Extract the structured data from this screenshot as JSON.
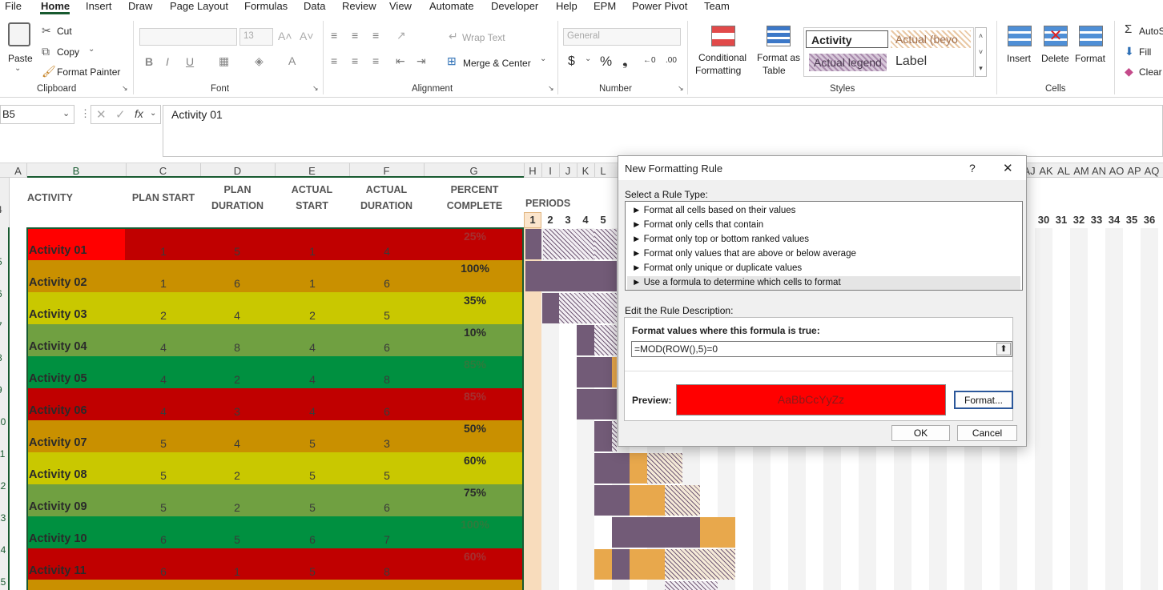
{
  "menu": {
    "items": [
      "File",
      "Home",
      "Insert",
      "Draw",
      "Page Layout",
      "Formulas",
      "Data",
      "Review",
      "View",
      "Automate",
      "Developer",
      "Help",
      "EPM",
      "Power Pivot",
      "Team"
    ],
    "active": "Home"
  },
  "ribbon": {
    "clipboard": {
      "paste": "Paste",
      "cut": "Cut",
      "copy": "Copy",
      "format_painter": "Format Painter",
      "label": "Clipboard"
    },
    "font": {
      "size": "13",
      "label": "Font"
    },
    "alignment": {
      "wrap_text": "Wrap Text",
      "merge_center": "Merge & Center",
      "label": "Alignment"
    },
    "number": {
      "format": "General",
      "label": "Number"
    },
    "styles": {
      "conditional_l1": "Conditional",
      "conditional_l2": "Formatting",
      "format_table_l1": "Format as",
      "format_table_l2": "Table",
      "cells": [
        "Activity",
        "Actual (beyo",
        "Actual legend",
        "Label"
      ],
      "label": "Styles"
    },
    "cells": {
      "insert": "Insert",
      "delete": "Delete",
      "format": "Format",
      "label": "Cells"
    },
    "editing": {
      "autosum": "AutoS",
      "fill": "Fill",
      "clear": "Clear"
    }
  },
  "formula_bar": {
    "name_box": "B5",
    "fx": "fx",
    "content": "Activity 01"
  },
  "grid": {
    "col_headers_left": [
      "A",
      "B",
      "C",
      "D",
      "E",
      "F",
      "G",
      "H",
      "I",
      "J",
      "K",
      "L"
    ],
    "col_headers_right": [
      "AJ",
      "AK",
      "AL",
      "AM",
      "AN",
      "AO",
      "AP",
      "AQ"
    ],
    "headers": {
      "activity": "ACTIVITY",
      "plan_start": "PLAN START",
      "plan_duration_l1": "PLAN",
      "plan_duration_l2": "DURATION",
      "actual_start_l1": "ACTUAL",
      "actual_start_l2": "START",
      "actual_duration_l1": "ACTUAL",
      "actual_duration_l2": "DURATION",
      "percent_l1": "PERCENT",
      "percent_l2": "COMPLETE",
      "periods": "PERIODS"
    },
    "period_numbers_left": [
      "1",
      "2",
      "3",
      "4",
      "5"
    ],
    "period_numbers_right": [
      "30",
      "31",
      "32",
      "33",
      "34",
      "35",
      "36"
    ],
    "row_numbers": [
      "4",
      "5",
      "6",
      "7",
      "8",
      "9",
      "10",
      "11",
      "12",
      "13",
      "14",
      "15"
    ],
    "activities": [
      {
        "name": "Activity 01",
        "plan_start": "1",
        "plan_duration": "5",
        "actual_start": "1",
        "actual_duration": "4",
        "pct": "25%",
        "color": "#c00000",
        "pct_color": "#a52f2f"
      },
      {
        "name": "Activity 02",
        "plan_start": "1",
        "plan_duration": "6",
        "actual_start": "1",
        "actual_duration": "6",
        "pct": "100%",
        "color": "#c99000",
        "pct_color": "#2a2a2a"
      },
      {
        "name": "Activity 03",
        "plan_start": "2",
        "plan_duration": "4",
        "actual_start": "2",
        "actual_duration": "5",
        "pct": "35%",
        "color": "#c9c800",
        "pct_color": "#2a2a2a"
      },
      {
        "name": "Activity 04",
        "plan_start": "4",
        "plan_duration": "8",
        "actual_start": "4",
        "actual_duration": "6",
        "pct": "10%",
        "color": "#70a041",
        "pct_color": "#2a2a2a"
      },
      {
        "name": "Activity 05",
        "plan_start": "4",
        "plan_duration": "2",
        "actual_start": "4",
        "actual_duration": "8",
        "pct": "85%",
        "color": "#009040",
        "pct_color": "#2f7a3c"
      },
      {
        "name": "Activity 06",
        "plan_start": "4",
        "plan_duration": "3",
        "actual_start": "4",
        "actual_duration": "6",
        "pct": "85%",
        "color": "#c00000",
        "pct_color": "#a52f2f"
      },
      {
        "name": "Activity 07",
        "plan_start": "5",
        "plan_duration": "4",
        "actual_start": "5",
        "actual_duration": "3",
        "pct": "50%",
        "color": "#c99000",
        "pct_color": "#2a2a2a"
      },
      {
        "name": "Activity 08",
        "plan_start": "5",
        "plan_duration": "2",
        "actual_start": "5",
        "actual_duration": "5",
        "pct": "60%",
        "color": "#c9c800",
        "pct_color": "#2a2a2a"
      },
      {
        "name": "Activity 09",
        "plan_start": "5",
        "plan_duration": "2",
        "actual_start": "5",
        "actual_duration": "6",
        "pct": "75%",
        "color": "#70a041",
        "pct_color": "#2a2a2a"
      },
      {
        "name": "Activity 10",
        "plan_start": "6",
        "plan_duration": "5",
        "actual_start": "6",
        "actual_duration": "7",
        "pct": "100%",
        "color": "#009040",
        "pct_color": "#2f7a3c"
      },
      {
        "name": "Activity 11",
        "plan_start": "6",
        "plan_duration": "1",
        "actual_start": "5",
        "actual_duration": "8",
        "pct": "60%",
        "color": "#c00000",
        "pct_color": "#a52f2f"
      }
    ]
  },
  "dialog": {
    "title": "New Formatting Rule",
    "help": "?",
    "close": "✕",
    "select_type_label": "Select a Rule Type:",
    "rule_types": [
      "► Format all cells based on their values",
      "► Format only cells that contain",
      "► Format only top or bottom ranked values",
      "► Format only values that are above or below average",
      "► Format only unique or duplicate values",
      "► Use a formula to determine which cells to format"
    ],
    "selected_index": 5,
    "edit_label": "Edit the Rule Description:",
    "formula_label": "Format values where this formula is true:",
    "formula": "=MOD(ROW(),5)=0",
    "preview_label": "Preview:",
    "preview_text": "AaBbCcYyZz",
    "preview_color": "#ff0000",
    "format_button": "Format...",
    "ok": "OK",
    "cancel": "Cancel"
  }
}
